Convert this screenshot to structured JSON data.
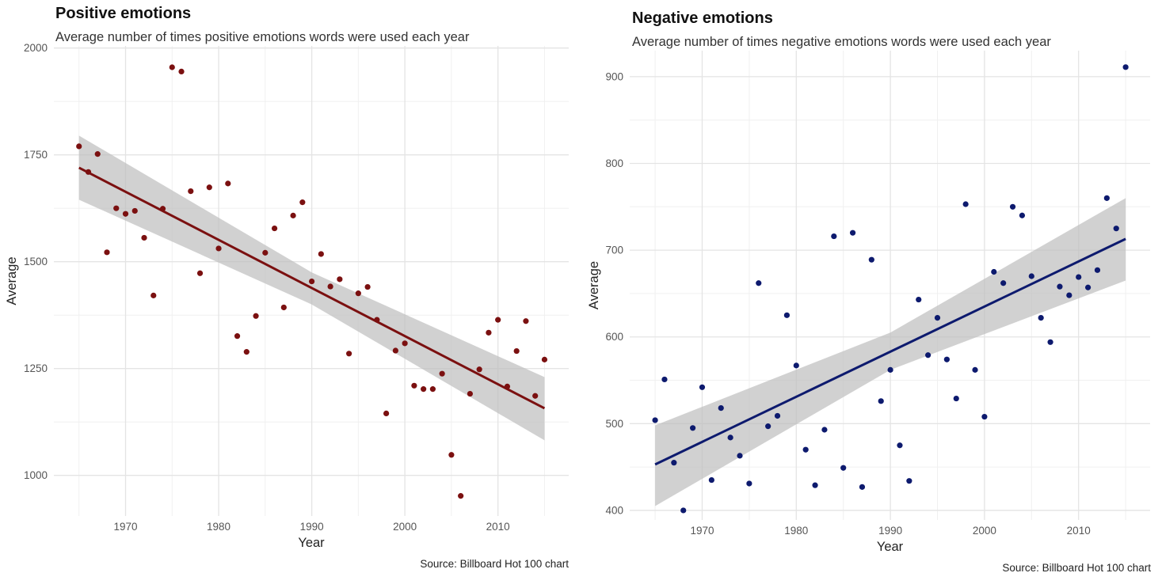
{
  "chart_data": [
    {
      "type": "scatter",
      "title": "Positive emotions",
      "subtitle": "Average number of times positive emotions words were used each year",
      "xlabel": "Year",
      "ylabel": "Average",
      "source": "Source: Billboard Hot 100 chart",
      "xlim": [
        1962.3,
        2017.6
      ],
      "ylim": [
        905,
        2005
      ],
      "x_ticks": [
        1970,
        1980,
        1990,
        2000,
        2010
      ],
      "y_ticks": [
        1000,
        1250,
        1500,
        1750,
        2000
      ],
      "x_tick_labels": [
        "1970",
        "1980",
        "1990",
        "2000",
        "2010"
      ],
      "y_tick_labels": [
        "1000",
        "1250",
        "1500",
        "1750",
        "2000"
      ],
      "grid": true,
      "point_color": "#7b1010",
      "line_color": "#7b1010",
      "band_color": "#bdbdbd",
      "x": [
        1965,
        1966,
        1967,
        1968,
        1969,
        1970,
        1971,
        1972,
        1973,
        1974,
        1975,
        1976,
        1977,
        1978,
        1979,
        1980,
        1981,
        1982,
        1983,
        1984,
        1985,
        1986,
        1987,
        1988,
        1989,
        1990,
        1991,
        1992,
        1993,
        1994,
        1995,
        1996,
        1997,
        1998,
        1999,
        2000,
        2001,
        2002,
        2003,
        2004,
        2005,
        2006,
        2007,
        2008,
        2009,
        2010,
        2011,
        2012,
        2013,
        2014,
        2015
      ],
      "y": [
        1770,
        1710,
        1752,
        1522,
        1625,
        1612,
        1619,
        1556,
        1421,
        1624,
        1955,
        1945,
        1665,
        1473,
        1674,
        1531,
        1683,
        1326,
        1289,
        1373,
        1521,
        1578,
        1393,
        1608,
        1639,
        1454,
        1518,
        1442,
        1459,
        1285,
        1426,
        1441,
        1364,
        1145,
        1292,
        1309,
        1210,
        1202,
        1202,
        1238,
        1048,
        952,
        1191,
        1248,
        1334,
        1364,
        1208,
        1291,
        1361,
        1186,
        1271
      ],
      "trend": {
        "x": [
          1965,
          2015
        ],
        "y": [
          1720,
          1157
        ]
      },
      "band": {
        "x": [
          1965,
          1990,
          2015
        ],
        "upper": [
          1795,
          1475,
          1230
        ],
        "lower": [
          1645,
          1400,
          1082
        ]
      }
    },
    {
      "type": "scatter",
      "title": "Negative emotions",
      "subtitle": "Average number of times negative emotions words were used each year",
      "xlabel": "Year",
      "ylabel": "Average",
      "source": "Source: Billboard Hot 100 chart",
      "xlim": [
        1962.3,
        2017.6
      ],
      "ylim": [
        389,
        930
      ],
      "x_ticks": [
        1970,
        1980,
        1990,
        2000,
        2010
      ],
      "y_ticks": [
        400,
        500,
        600,
        700,
        800,
        900
      ],
      "x_tick_labels": [
        "1970",
        "1980",
        "1990",
        "2000",
        "2010"
      ],
      "y_tick_labels": [
        "400",
        "500",
        "600",
        "700",
        "800",
        "900"
      ],
      "grid": true,
      "point_color": "#0d1a6e",
      "line_color": "#0d1a6e",
      "band_color": "#bdbdbd",
      "x": [
        1965,
        1966,
        1967,
        1968,
        1969,
        1970,
        1971,
        1972,
        1973,
        1974,
        1975,
        1976,
        1977,
        1978,
        1979,
        1980,
        1981,
        1982,
        1983,
        1984,
        1985,
        1986,
        1987,
        1988,
        1989,
        1990,
        1991,
        1992,
        1993,
        1994,
        1995,
        1996,
        1997,
        1998,
        1999,
        2000,
        2001,
        2002,
        2003,
        2004,
        2005,
        2006,
        2007,
        2008,
        2009,
        2010,
        2011,
        2012,
        2013,
        2014,
        2015
      ],
      "y": [
        504,
        551,
        455,
        400,
        495,
        542,
        435,
        518,
        484,
        463,
        431,
        662,
        497,
        509,
        625,
        567,
        470,
        429,
        493,
        716,
        449,
        720,
        427,
        689,
        526,
        562,
        475,
        434,
        643,
        579,
        622,
        574,
        529,
        753,
        562,
        508,
        675,
        662,
        750,
        740,
        670,
        622,
        594,
        658,
        648,
        669,
        657,
        677,
        760,
        725,
        911
      ],
      "trend": {
        "x": [
          1965,
          2015
        ],
        "y": [
          453,
          713
        ]
      },
      "band": {
        "x": [
          1965,
          1990,
          2015
        ],
        "upper": [
          498,
          605,
          760
        ],
        "lower": [
          405,
          562,
          665
        ]
      }
    }
  ]
}
